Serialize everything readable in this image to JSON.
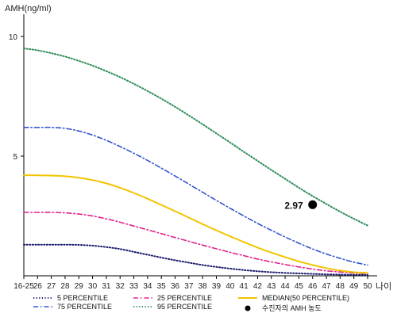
{
  "chart_data": {
    "type": "line",
    "ylabel": "AMH(ng/ml)",
    "xlabel": "나이",
    "x_ticks": [
      "16-25",
      "26",
      "27",
      "28",
      "29",
      "30",
      "31",
      "32",
      "33",
      "34",
      "35",
      "36",
      "37",
      "38",
      "39",
      "40",
      "41",
      "42",
      "43",
      "44",
      "45",
      "46",
      "47",
      "48",
      "49",
      "50"
    ],
    "y_ticks": [
      5,
      10
    ],
    "ylim": [
      0,
      11
    ],
    "grid": false,
    "legend_position": "bottom",
    "series": [
      {
        "name": "5 PERCENTILE",
        "color": "#1a1a6e",
        "dash": "dotted",
        "values": [
          1.3,
          1.3,
          1.3,
          1.3,
          1.29,
          1.26,
          1.2,
          1.12,
          1.0,
          0.88,
          0.76,
          0.65,
          0.55,
          0.45,
          0.37,
          0.3,
          0.24,
          0.19,
          0.15,
          0.12,
          0.1,
          0.08,
          0.06,
          0.05,
          0.04,
          0.04
        ]
      },
      {
        "name": "25 PERCENTILE",
        "color": "#e0228c",
        "dash": "dashdot",
        "values": [
          2.65,
          2.65,
          2.65,
          2.63,
          2.58,
          2.5,
          2.38,
          2.24,
          2.08,
          1.92,
          1.76,
          1.6,
          1.44,
          1.28,
          1.13,
          0.98,
          0.84,
          0.7,
          0.58,
          0.47,
          0.37,
          0.28,
          0.21,
          0.16,
          0.12,
          0.1
        ]
      },
      {
        "name": "MEDIAN(50 PERCENTILE)",
        "color": "#f2c400",
        "dash": "solid",
        "values": [
          4.2,
          4.2,
          4.19,
          4.16,
          4.1,
          4.0,
          3.86,
          3.68,
          3.46,
          3.22,
          2.96,
          2.7,
          2.43,
          2.16,
          1.9,
          1.65,
          1.41,
          1.18,
          0.97,
          0.78,
          0.6,
          0.45,
          0.32,
          0.22,
          0.15,
          0.12
        ]
      },
      {
        "name": "75 PERCENTILE",
        "color": "#3355cc",
        "dash": "dashdot",
        "values": [
          6.2,
          6.2,
          6.2,
          6.16,
          6.05,
          5.88,
          5.66,
          5.4,
          5.12,
          4.82,
          4.5,
          4.17,
          3.83,
          3.49,
          3.15,
          2.82,
          2.5,
          2.19,
          1.9,
          1.62,
          1.36,
          1.12,
          0.91,
          0.73,
          0.57,
          0.45
        ]
      },
      {
        "name": "95 PERCENTILE",
        "color": "#2e8b57",
        "dash": "dotted",
        "values": [
          9.5,
          9.42,
          9.3,
          9.16,
          8.98,
          8.78,
          8.55,
          8.3,
          8.02,
          7.72,
          7.4,
          7.06,
          6.7,
          6.33,
          5.95,
          5.57,
          5.18,
          4.8,
          4.42,
          4.05,
          3.68,
          3.33,
          3.0,
          2.68,
          2.38,
          2.1
        ]
      }
    ],
    "patient_point": {
      "legend_label": "수진자의 AMH 농도",
      "x": "46",
      "y": 2.97,
      "label": "2.97"
    }
  }
}
